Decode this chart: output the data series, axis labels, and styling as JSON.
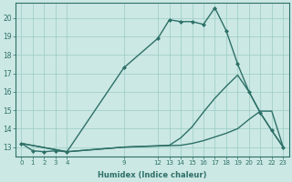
{
  "xlabel": "Humidex (Indice chaleur)",
  "bg_color": "#cce8e4",
  "line_color": "#2d7068",
  "grid_color": "#99ccc4",
  "xlim": [
    -0.5,
    23.5
  ],
  "ylim": [
    12.5,
    20.8
  ],
  "yticks": [
    13,
    14,
    15,
    16,
    17,
    18,
    19,
    20
  ],
  "xticks": [
    0,
    1,
    2,
    3,
    4,
    9,
    12,
    13,
    14,
    15,
    16,
    17,
    18,
    19,
    20,
    21,
    22,
    23
  ],
  "series": [
    {
      "x": [
        0,
        1,
        2,
        3,
        4,
        9,
        12,
        13,
        14,
        15,
        16,
        17,
        18,
        19,
        20,
        21,
        22,
        23
      ],
      "y": [
        13.2,
        12.8,
        12.75,
        12.8,
        12.75,
        17.3,
        18.9,
        19.9,
        19.8,
        19.8,
        19.65,
        20.55,
        19.3,
        17.5,
        16.0,
        14.85,
        13.9,
        13.0
      ],
      "marker": "D",
      "markersize": 2.0,
      "linewidth": 1.0,
      "has_marker": true
    },
    {
      "x": [
        0,
        4,
        9,
        14,
        15,
        16,
        17,
        18,
        19,
        20,
        21,
        22,
        23
      ],
      "y": [
        13.2,
        12.75,
        13.0,
        13.1,
        13.2,
        13.35,
        13.55,
        13.75,
        14.0,
        14.5,
        14.95,
        14.95,
        13.0
      ],
      "marker": null,
      "markersize": 0,
      "linewidth": 1.0,
      "has_marker": false
    },
    {
      "x": [
        0,
        4,
        9,
        13,
        14,
        15,
        16,
        17,
        18,
        19,
        20,
        21,
        22,
        23
      ],
      "y": [
        13.2,
        12.75,
        13.0,
        13.1,
        13.5,
        14.1,
        14.9,
        15.65,
        16.3,
        16.9,
        16.0,
        14.85,
        13.9,
        13.0
      ],
      "marker": null,
      "markersize": 0,
      "linewidth": 1.0,
      "has_marker": false
    }
  ]
}
